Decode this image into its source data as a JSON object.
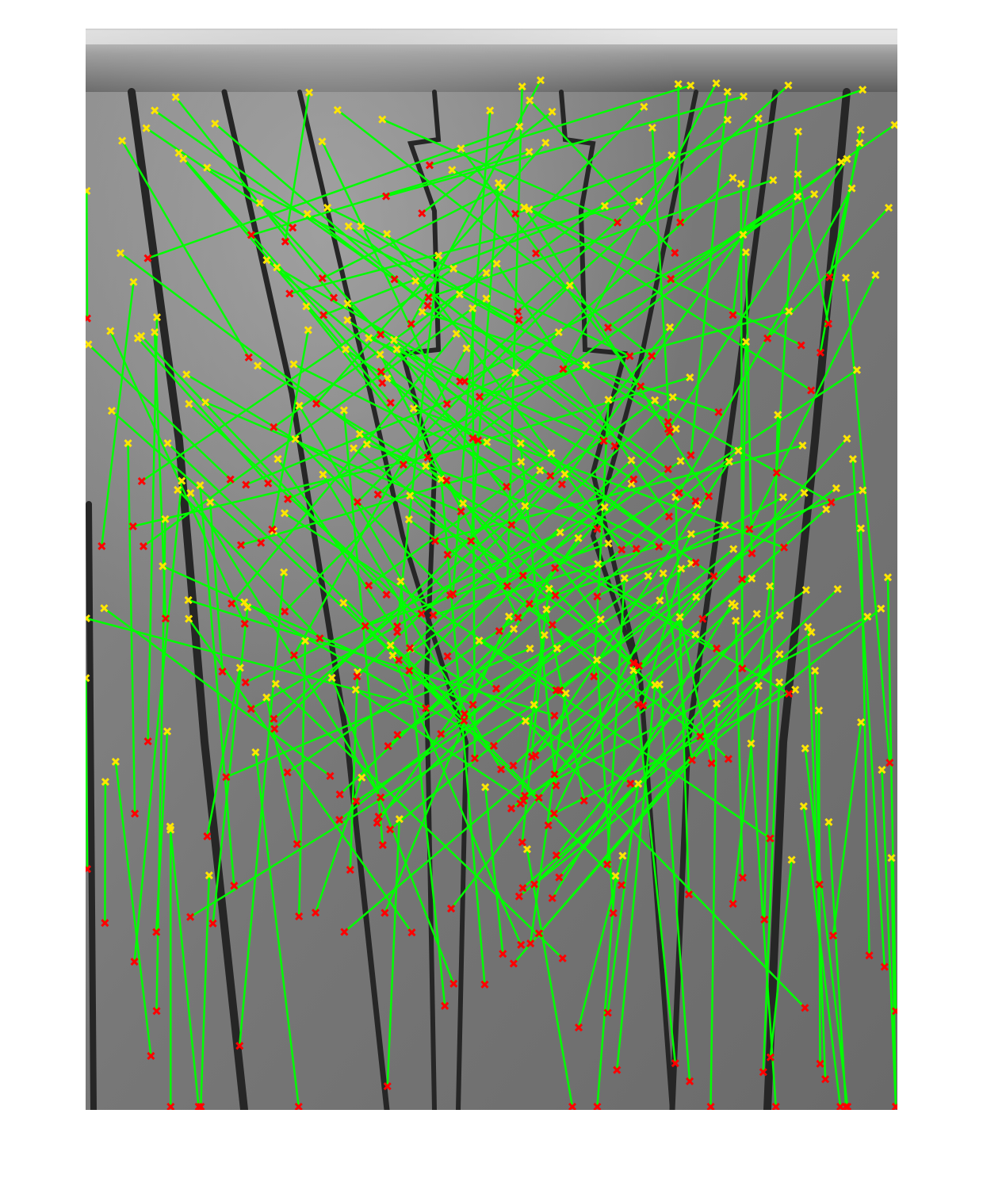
{
  "figure": {
    "description_visible_text": "",
    "colors": {
      "match_line": "#00ff00",
      "point_source": "#ffe600",
      "point_target": "#ff0000",
      "photo_dark": "#2a2a2a",
      "photo_mid": "#7f7f7f",
      "photo_light": "#bdbdbd"
    },
    "marker_legend": {
      "source_marker_symbol": "x",
      "target_marker_symbol": "x"
    }
  }
}
